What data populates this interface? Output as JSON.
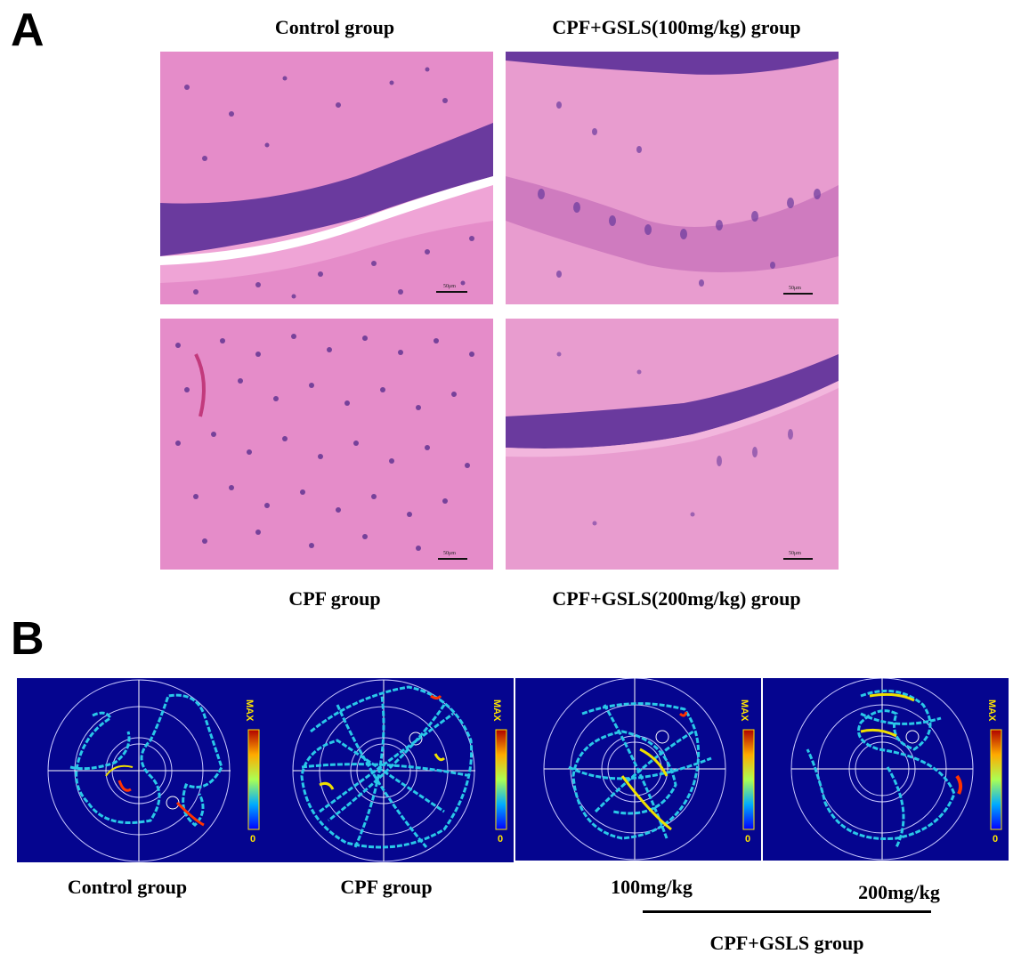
{
  "panelA": {
    "letter": "A",
    "captions": {
      "top_left": "Control group",
      "top_right": "CPF+GSLS(100mg/kg) group",
      "bottom_left": "CPF group",
      "bottom_right": "CPF+GSLS(200mg/kg) group"
    },
    "scalebar_text": "50μm",
    "colors": {
      "tissue": "#e58cc9",
      "nuclei": "#5b2f8f",
      "background": "#ffffff"
    }
  },
  "panelB": {
    "letter": "B",
    "captions": {
      "control": "Control group",
      "cpf": "CPF group",
      "dose100": "100mg/kg",
      "dose200": "200mg/kg",
      "bracket_label": "CPF+GSLS group"
    },
    "colorbar": {
      "max_label": "MAX",
      "min_label": "0"
    },
    "colors": {
      "background": "#05058f",
      "track": "#2ac8e8"
    }
  }
}
